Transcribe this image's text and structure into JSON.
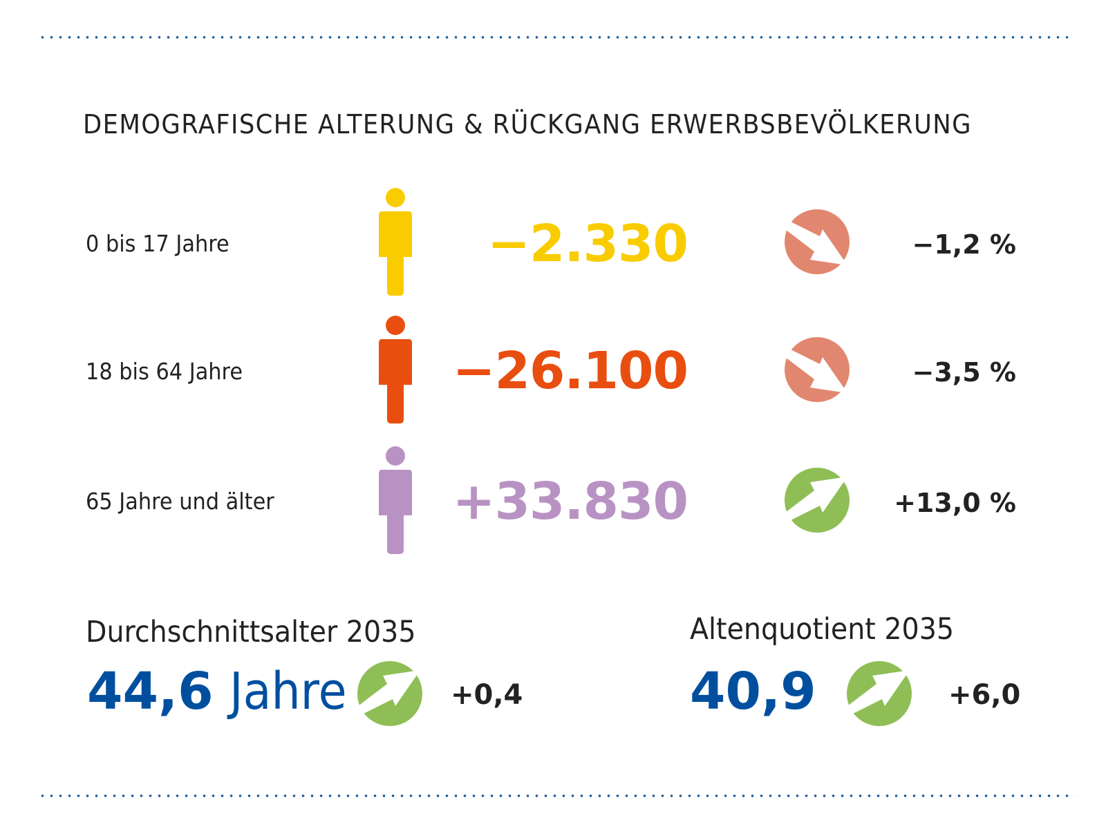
{
  "title": "DEMOGRAFISCHE ALTERUNG & RÜCKGANG ERWERBSBEVÖLKERUNG",
  "colors": {
    "dots": "#1b5a96",
    "age_0_17": "#f9cc00",
    "age_18_64": "#e84e0f",
    "age_65": "#b992c4",
    "down": "#e2876f",
    "up": "#8fbe56",
    "blue": "#004f9f"
  },
  "rows": [
    {
      "label": "0 bis 17 Jahre",
      "change": "−2.330",
      "trend": "down",
      "trend_icon": "arrow-down-right-icon",
      "percent": "−1,2 %"
    },
    {
      "label": "18 bis 64 Jahre",
      "change": "−26.100",
      "trend": "down",
      "trend_icon": "arrow-down-right-icon",
      "percent": "−3,5 %"
    },
    {
      "label": "65 Jahre und älter",
      "change": "+33.830",
      "trend": "up",
      "trend_icon": "arrow-up-right-icon",
      "percent": "+13,0 %"
    }
  ],
  "average_age": {
    "label": "Durchschnittsalter 2035",
    "value": "44,6",
    "unit": "Jahre",
    "trend": "up",
    "delta": "+0,4"
  },
  "old_age_ratio": {
    "label": "Altenquotient 2035",
    "value": "40,9",
    "trend": "up",
    "delta": "+6,0"
  }
}
